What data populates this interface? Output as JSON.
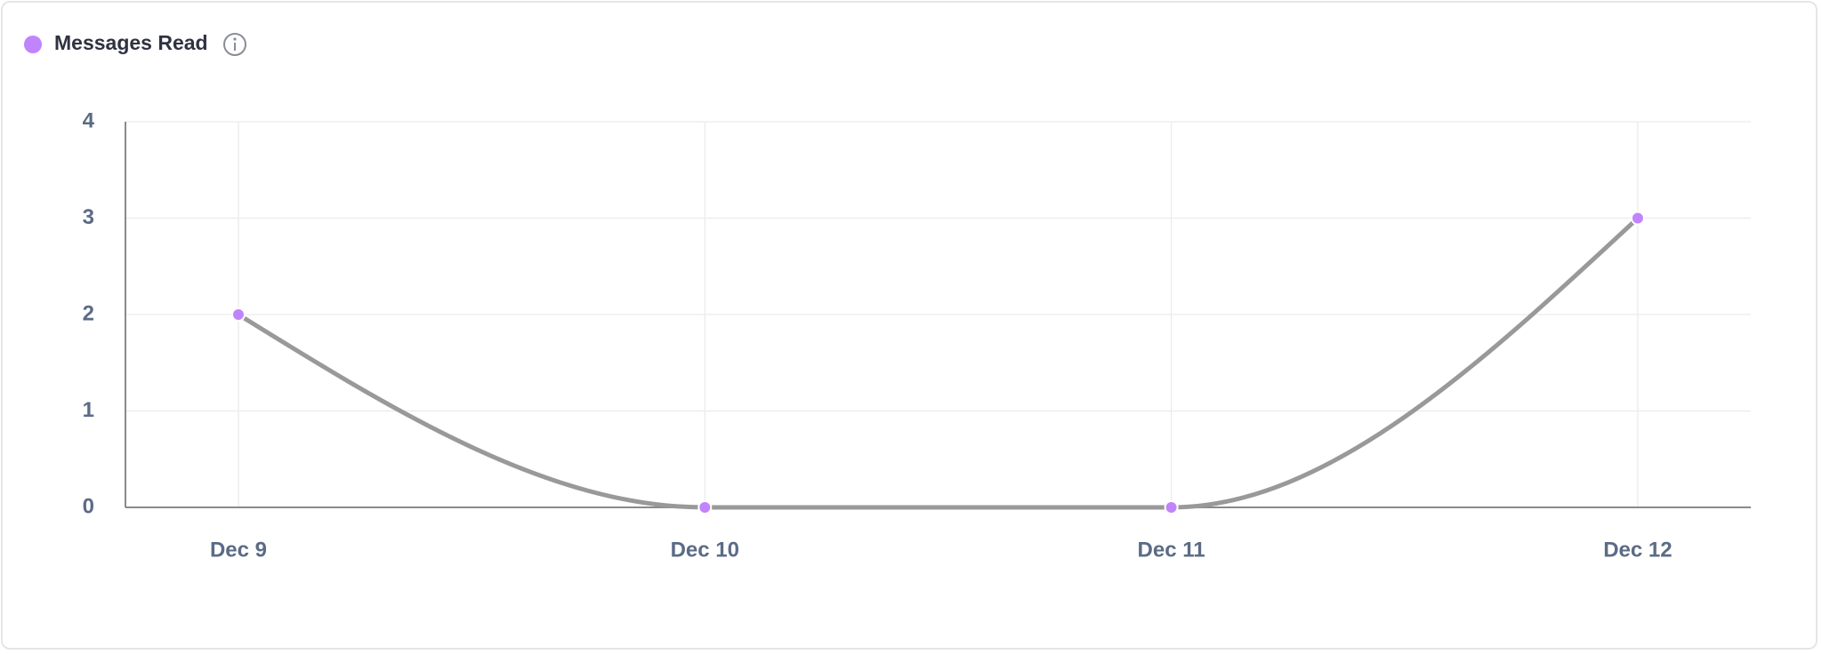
{
  "chart_data": {
    "type": "line",
    "categories": [
      "Dec 9",
      "Dec 10",
      "Dec 11",
      "Dec 12"
    ],
    "series": [
      {
        "name": "Messages Read",
        "color": "#c084fc",
        "line_color": "#999999",
        "values": [
          2,
          0,
          0,
          3
        ]
      }
    ],
    "ylim": [
      0,
      4
    ],
    "yticks": [
      0,
      1,
      2,
      3,
      4
    ],
    "grid": true,
    "curve": "smooth"
  }
}
